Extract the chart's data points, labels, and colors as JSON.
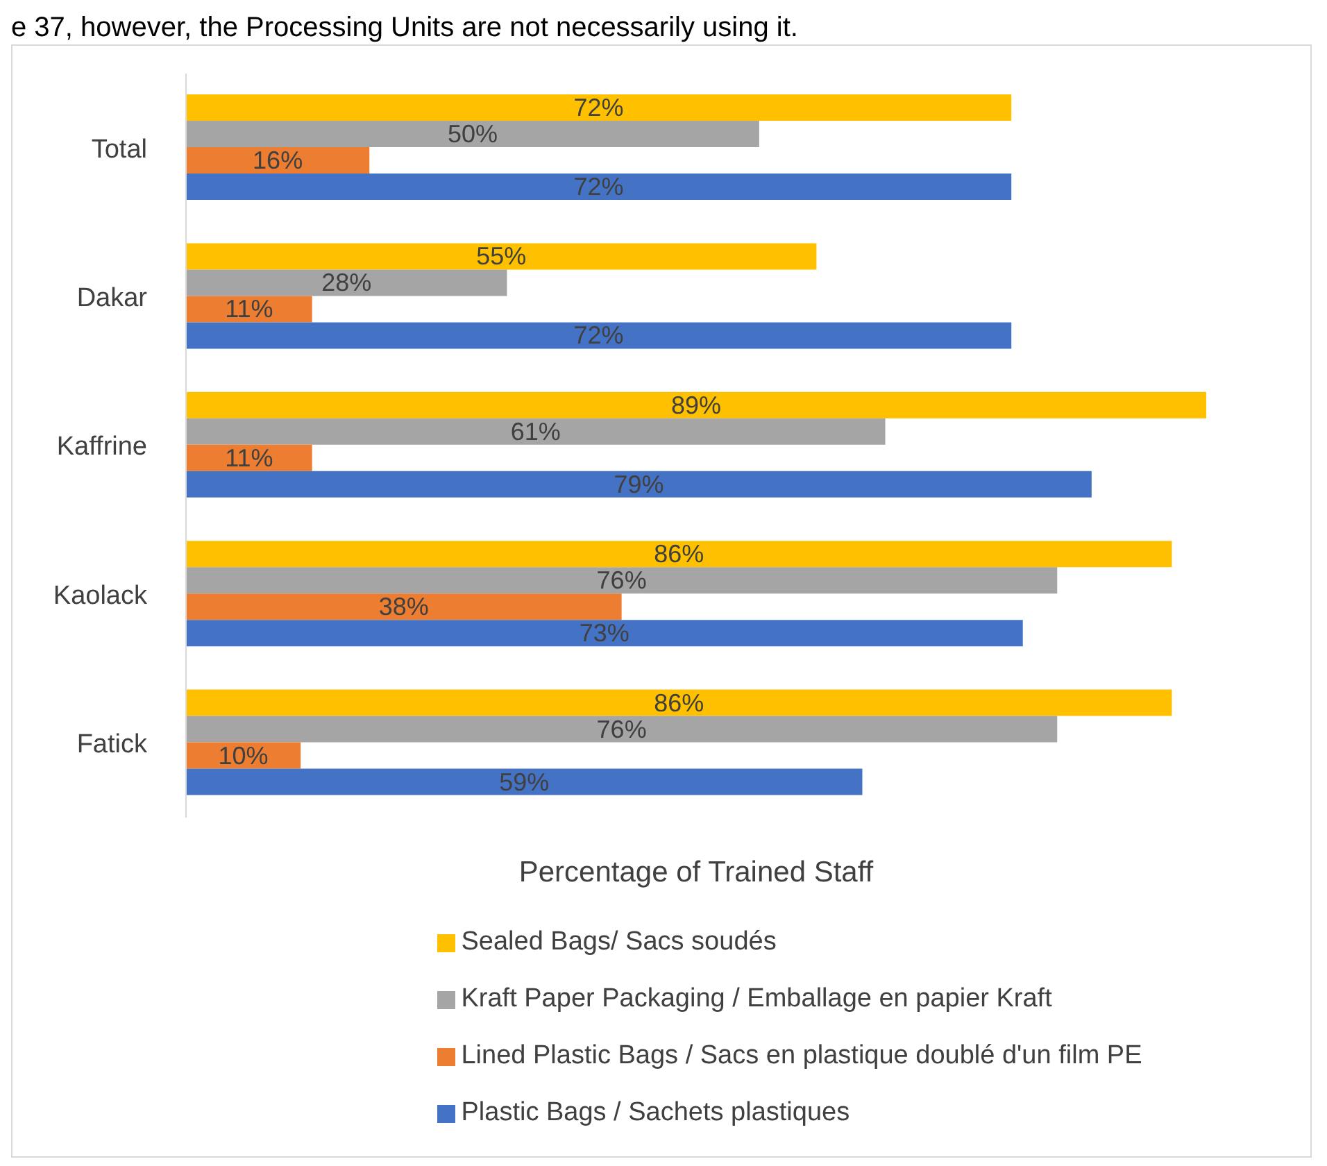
{
  "chart_data": {
    "type": "bar",
    "orientation": "horizontal",
    "annotations": [
      "e 37, however, the Processing Units are not necessarily using it."
    ],
    "xlabel": "Percentage of Trained Staff",
    "categories": [
      "Total",
      "Dakar",
      "Kaffrine",
      "Kaolack",
      "Fatick"
    ],
    "series": [
      {
        "name": "Sealed Bags/ Sacs soudés",
        "color": "#ffc000",
        "values": [
          72,
          55,
          89,
          86,
          86
        ],
        "value_labels": [
          "72%",
          "55%",
          "89%",
          "86%",
          "86%"
        ]
      },
      {
        "name": "Kraft Paper Packaging / Emballage en papier Kraft",
        "color": "#a5a5a5",
        "values": [
          50,
          28,
          61,
          76,
          76
        ],
        "value_labels": [
          "50%",
          "28%",
          "61%",
          "76%",
          "76%"
        ]
      },
      {
        "name": "Lined Plastic Bags / Sacs en plastique doublé d'un film PE",
        "color": "#ed7d31",
        "values": [
          16,
          11,
          11,
          38,
          10
        ],
        "value_labels": [
          "16%",
          "11%",
          "11%",
          "38%",
          "10%"
        ]
      },
      {
        "name": "Plastic Bags / Sachets plastiques",
        "color": "#4472c4",
        "values": [
          72,
          72,
          79,
          73,
          59
        ],
        "value_labels": [
          "72%",
          "72%",
          "79%",
          "73%",
          "59%"
        ]
      }
    ],
    "legend": "bottom",
    "grid": false
  }
}
